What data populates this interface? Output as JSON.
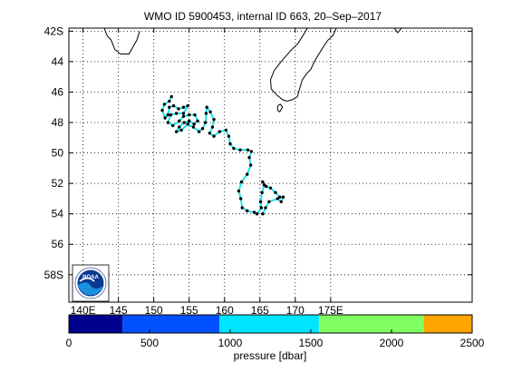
{
  "title": "WMO ID 5900453, internal ID 663, 20–Sep–2017",
  "map": {
    "lon_range": [
      138,
      195
    ],
    "lat_range": [
      -59.8,
      -41.8
    ],
    "lat_ticks": [
      {
        "value": -42,
        "label": "42S"
      },
      {
        "value": -44,
        "label": "44"
      },
      {
        "value": -46,
        "label": "46"
      },
      {
        "value": -48,
        "label": "48"
      },
      {
        "value": -50,
        "label": "50"
      },
      {
        "value": -52,
        "label": "52"
      },
      {
        "value": -54,
        "label": "54"
      },
      {
        "value": -56,
        "label": "56"
      },
      {
        "value": -58,
        "label": "58S"
      }
    ],
    "lon_ticks": [
      {
        "value": 140,
        "label": "140E"
      },
      {
        "value": 145,
        "label": "145"
      },
      {
        "value": 150,
        "label": "150"
      },
      {
        "value": 155,
        "label": "155"
      },
      {
        "value": 160,
        "label": "160"
      },
      {
        "value": 165,
        "label": "165"
      },
      {
        "value": 170,
        "label": "170"
      },
      {
        "value": 175,
        "label": "175E"
      }
    ],
    "grid": true,
    "track_color": "#00e5ee",
    "point_color": "#000000",
    "coast_color": "#000000",
    "logo": "noaa-logo",
    "logo_text": "NOAA",
    "float_track": [
      [
        152.5,
        -46.3
      ],
      [
        152.2,
        -46.6
      ],
      [
        151.5,
        -46.8
      ],
      [
        151.2,
        -47.2
      ],
      [
        151.6,
        -47.7
      ],
      [
        152.0,
        -47.5
      ],
      [
        152.2,
        -47.0
      ],
      [
        152.8,
        -46.9
      ],
      [
        153.5,
        -47.1
      ],
      [
        154.2,
        -47.0
      ],
      [
        154.8,
        -46.9
      ],
      [
        154.2,
        -47.4
      ],
      [
        153.2,
        -47.4
      ],
      [
        152.4,
        -47.5
      ],
      [
        152.0,
        -48.0
      ],
      [
        152.7,
        -48.2
      ],
      [
        153.6,
        -47.9
      ],
      [
        154.2,
        -47.6
      ],
      [
        155.0,
        -47.5
      ],
      [
        155.8,
        -47.5
      ],
      [
        156.2,
        -47.9
      ],
      [
        155.7,
        -48.1
      ],
      [
        155.0,
        -47.9
      ],
      [
        154.3,
        -48.0
      ],
      [
        153.6,
        -48.3
      ],
      [
        153.2,
        -48.6
      ],
      [
        153.9,
        -48.5
      ],
      [
        154.8,
        -48.1
      ],
      [
        155.6,
        -48.3
      ],
      [
        156.4,
        -48.6
      ],
      [
        156.9,
        -48.4
      ],
      [
        157.3,
        -48.0
      ],
      [
        157.4,
        -47.4
      ],
      [
        157.5,
        -47.0
      ],
      [
        158.0,
        -47.3
      ],
      [
        158.5,
        -47.8
      ],
      [
        158.3,
        -48.3
      ],
      [
        157.9,
        -48.7
      ],
      [
        158.5,
        -48.9
      ],
      [
        159.3,
        -48.6
      ],
      [
        160.2,
        -48.5
      ],
      [
        160.6,
        -48.9
      ],
      [
        160.8,
        -49.4
      ],
      [
        161.3,
        -49.7
      ],
      [
        162.2,
        -49.8
      ],
      [
        163.3,
        -49.8
      ],
      [
        163.8,
        -49.9
      ],
      [
        163.5,
        -50.3
      ],
      [
        163.7,
        -50.8
      ],
      [
        163.2,
        -51.4
      ],
      [
        162.4,
        -51.9
      ],
      [
        162.0,
        -52.5
      ],
      [
        162.3,
        -53.0
      ],
      [
        162.5,
        -53.6
      ],
      [
        163.2,
        -53.8
      ],
      [
        164.2,
        -53.9
      ],
      [
        164.6,
        -54.0
      ],
      [
        165.2,
        -53.6
      ],
      [
        165.1,
        -53.2
      ],
      [
        165.3,
        -52.6
      ],
      [
        165.6,
        -52.1
      ],
      [
        165.4,
        -51.9
      ],
      [
        165.9,
        -52.2
      ],
      [
        166.5,
        -52.3
      ],
      [
        167.2,
        -52.6
      ],
      [
        167.8,
        -52.9
      ],
      [
        168.3,
        -52.9
      ],
      [
        168.0,
        -53.2
      ],
      [
        167.5,
        -53.0
      ],
      [
        166.3,
        -53.2
      ],
      [
        165.8,
        -53.6
      ],
      [
        165.4,
        -54.0
      ]
    ],
    "coastlines": [
      [
        [
          143.0,
          -41.8
        ],
        [
          143.4,
          -42.3
        ],
        [
          144.0,
          -42.6
        ],
        [
          144.5,
          -43.2
        ],
        [
          145.3,
          -43.5
        ],
        [
          146.5,
          -43.5
        ],
        [
          147.1,
          -43.0
        ],
        [
          147.6,
          -42.6
        ],
        [
          148.0,
          -42.0
        ]
      ],
      [
        [
          175.8,
          -41.8
        ],
        [
          175.3,
          -42.3
        ],
        [
          174.6,
          -42.6
        ],
        [
          174.0,
          -43.0
        ],
        [
          173.2,
          -43.6
        ],
        [
          172.7,
          -44.0
        ],
        [
          172.2,
          -44.5
        ],
        [
          171.6,
          -44.8
        ],
        [
          171.0,
          -45.2
        ],
        [
          170.6,
          -45.8
        ],
        [
          170.3,
          -46.3
        ],
        [
          169.6,
          -46.5
        ],
        [
          168.8,
          -46.6
        ],
        [
          168.2,
          -46.5
        ],
        [
          167.4,
          -46.2
        ],
        [
          166.6,
          -45.8
        ],
        [
          166.5,
          -45.2
        ],
        [
          167.0,
          -44.6
        ],
        [
          168.0,
          -44.0
        ],
        [
          169.3,
          -43.3
        ],
        [
          170.4,
          -42.8
        ],
        [
          171.2,
          -42.2
        ],
        [
          171.7,
          -41.8
        ]
      ],
      [
        [
          167.5,
          -46.9
        ],
        [
          167.9,
          -46.8
        ],
        [
          168.2,
          -47.0
        ],
        [
          167.8,
          -47.3
        ],
        [
          167.5,
          -47.2
        ],
        [
          167.5,
          -46.9
        ]
      ],
      [
        [
          184.0,
          -41.8
        ],
        [
          184.5,
          -42.1
        ],
        [
          185.0,
          -41.8
        ]
      ]
    ]
  },
  "colorbar": {
    "label": "pressure [dbar]",
    "range": [
      0,
      2500
    ],
    "ticks": [
      {
        "value": 0,
        "label": "0"
      },
      {
        "value": 500,
        "label": "500"
      },
      {
        "value": 1000,
        "label": "1000"
      },
      {
        "value": 1500,
        "label": "1500"
      },
      {
        "value": 2000,
        "label": "2000"
      },
      {
        "value": 2500,
        "label": "2500"
      }
    ],
    "segments": [
      {
        "from": 0,
        "to": 333,
        "color": "#00008f"
      },
      {
        "from": 333,
        "to": 933,
        "color": "#0050ff"
      },
      {
        "from": 933,
        "to": 1550,
        "color": "#00e5ff"
      },
      {
        "from": 1550,
        "to": 2200,
        "color": "#80ff60"
      },
      {
        "from": 2200,
        "to": 2500,
        "color": "#ffa500"
      }
    ]
  }
}
